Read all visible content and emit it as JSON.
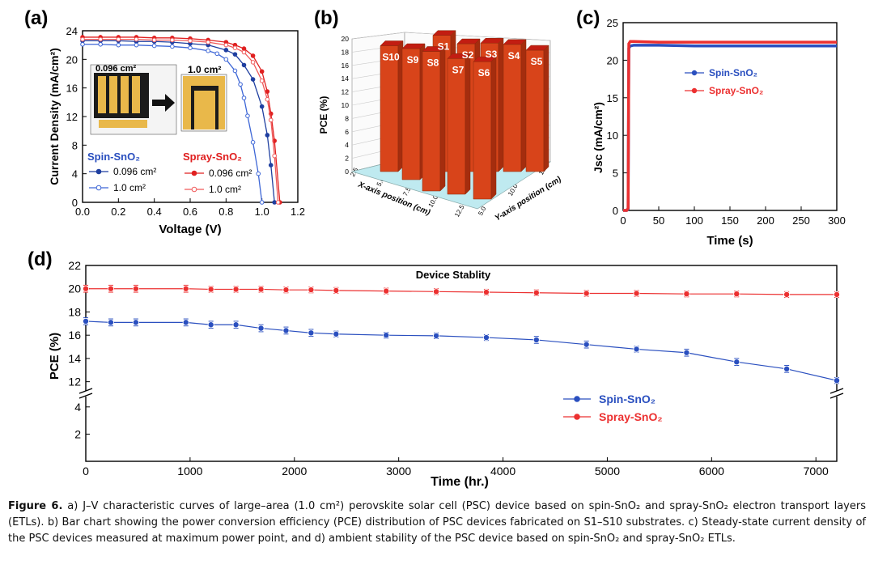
{
  "chart_data": [
    {
      "panel": "(a)",
      "type": "line",
      "title": "",
      "xlabel": "Voltage (V)",
      "ylabel": "Current Density (mA/cm²)",
      "xlim": [
        0.0,
        1.2
      ],
      "ylim": [
        0,
        24
      ],
      "xticks": [
        "0.0",
        "0.2",
        "0.4",
        "0.6",
        "0.8",
        "1.0",
        "1.2"
      ],
      "yticks": [
        "0",
        "4",
        "8",
        "12",
        "16",
        "20",
        "24"
      ],
      "group_labels": [
        "Spin-SnO₂",
        "Spray-SnO₂"
      ],
      "inset_labels": [
        "0.096 cm²",
        "1.0 cm²"
      ],
      "series": [
        {
          "name": "0.096 cm²",
          "group": "Spin-SnO₂",
          "color": "#1f3fa0",
          "marker": "filled",
          "x": [
            0,
            0.1,
            0.2,
            0.3,
            0.4,
            0.5,
            0.6,
            0.7,
            0.8,
            0.85,
            0.9,
            0.95,
            1.0,
            1.03,
            1.05,
            1.07
          ],
          "y": [
            22.6,
            22.6,
            22.6,
            22.5,
            22.5,
            22.4,
            22.2,
            22.0,
            21.3,
            20.7,
            19.2,
            17.2,
            13.4,
            9.4,
            5.2,
            0
          ]
        },
        {
          "name": "1.0 cm²",
          "group": "Spin-SnO₂",
          "color": "#3d66d6",
          "marker": "open",
          "x": [
            0,
            0.1,
            0.2,
            0.3,
            0.4,
            0.5,
            0.6,
            0.7,
            0.75,
            0.8,
            0.85,
            0.88,
            0.9,
            0.92,
            0.95,
            0.98,
            1.0
          ],
          "y": [
            22.1,
            22.1,
            22.0,
            22.0,
            21.9,
            21.8,
            21.6,
            21.2,
            20.8,
            20.0,
            18.4,
            16.5,
            14.6,
            12.1,
            8.4,
            4.0,
            0
          ]
        },
        {
          "name": "0.096 cm²",
          "group": "Spray-SnO₂",
          "color": "#e02020",
          "marker": "filled",
          "x": [
            0,
            0.1,
            0.2,
            0.3,
            0.4,
            0.5,
            0.6,
            0.7,
            0.8,
            0.85,
            0.9,
            0.95,
            1.0,
            1.03,
            1.05,
            1.07,
            1.1
          ],
          "y": [
            23.1,
            23.1,
            23.1,
            23.1,
            23.0,
            23.0,
            22.9,
            22.7,
            22.4,
            22.0,
            21.5,
            20.5,
            18.3,
            15.5,
            12.4,
            8.6,
            0
          ]
        },
        {
          "name": "1.0 cm²",
          "group": "Spray-SnO₂",
          "color": "#f05a5a",
          "marker": "open",
          "x": [
            0,
            0.1,
            0.2,
            0.3,
            0.4,
            0.5,
            0.6,
            0.7,
            0.8,
            0.85,
            0.9,
            0.95,
            1.0,
            1.03,
            1.05,
            1.07,
            1.09
          ],
          "y": [
            22.8,
            22.8,
            22.8,
            22.8,
            22.7,
            22.7,
            22.6,
            22.4,
            22.0,
            21.6,
            21.0,
            19.6,
            17.0,
            14.4,
            11.5,
            6.5,
            0
          ]
        }
      ]
    },
    {
      "panel": "(b)",
      "type": "bar",
      "title": "",
      "xlabel": "X-axis position (cm)",
      "ylabel": "Y-axis position (cm)",
      "zlabel": "PCE (%)",
      "zlim": [
        0,
        20
      ],
      "zticks": [
        "0",
        "2",
        "4",
        "6",
        "8",
        "10",
        "12",
        "14",
        "16",
        "18",
        "20"
      ],
      "xticks": [
        "2.5",
        "5.0",
        "7.5",
        "10.0",
        "12.5"
      ],
      "yticks": [
        "5.0",
        "10.0",
        "15.0"
      ],
      "categories": [
        "S10",
        "S9",
        "S8",
        "S7",
        "S6",
        "S5",
        "S4",
        "S3",
        "S2",
        "S1"
      ],
      "values": [
        19.2,
        19.4,
        19.6,
        19.5,
        19.3,
        19.1,
        19.4,
        19.6,
        19.5,
        19.8
      ],
      "color": "#d8441a"
    },
    {
      "panel": "(c)",
      "type": "line",
      "title": "",
      "xlabel": "Time (s)",
      "ylabel": "Jsc (mA/cm²)",
      "xlim": [
        0,
        300
      ],
      "ylim": [
        0,
        25
      ],
      "xticks": [
        "0",
        "50",
        "100",
        "150",
        "200",
        "250",
        "300"
      ],
      "yticks": [
        "0",
        "5",
        "10",
        "15",
        "20",
        "25"
      ],
      "series": [
        {
          "name": "Spin-SnO₂",
          "color": "#2a4fbf",
          "x": [
            0,
            5,
            7,
            8,
            10,
            15,
            50,
            100,
            150,
            200,
            250,
            300
          ],
          "y": [
            0,
            0,
            0.2,
            21.6,
            21.9,
            22.0,
            22.0,
            21.9,
            21.9,
            21.9,
            21.9,
            21.9
          ]
        },
        {
          "name": "Spray-SnO₂",
          "color": "#ec3030",
          "x": [
            0,
            5,
            7,
            8,
            10,
            15,
            50,
            100,
            150,
            200,
            250,
            300
          ],
          "y": [
            0,
            0,
            0.3,
            22.2,
            22.5,
            22.5,
            22.4,
            22.4,
            22.4,
            22.4,
            22.4,
            22.4
          ]
        }
      ]
    },
    {
      "panel": "(d)",
      "type": "line",
      "title": "Device Stablity",
      "xlabel": "Time (hr.)",
      "ylabel": "PCE (%)",
      "xlim": [
        0,
        7200
      ],
      "ylim_upper": [
        11,
        22
      ],
      "ylim_lower": [
        0,
        5
      ],
      "axis_break": true,
      "xticks": [
        "0",
        "1000",
        "2000",
        "3000",
        "4000",
        "5000",
        "6000",
        "7000"
      ],
      "yticks_upper": [
        "12",
        "14",
        "16",
        "18",
        "20",
        "22"
      ],
      "yticks_lower": [
        "2",
        "4"
      ],
      "series": [
        {
          "name": "Spin-SnO₂",
          "color": "#2a4fbf",
          "x": [
            0,
            240,
            480,
            960,
            1200,
            1440,
            1680,
            1920,
            2160,
            2400,
            2880,
            3360,
            3840,
            4320,
            4800,
            5280,
            5760,
            6240,
            6720,
            7200
          ],
          "y": [
            17.2,
            17.1,
            17.1,
            17.1,
            16.9,
            16.9,
            16.6,
            16.4,
            16.2,
            16.1,
            16.0,
            15.95,
            15.8,
            15.6,
            15.2,
            14.8,
            14.5,
            13.7,
            13.1,
            12.1
          ],
          "err": [
            0.3,
            0.3,
            0.3,
            0.3,
            0.3,
            0.3,
            0.3,
            0.3,
            0.3,
            0.25,
            0.25,
            0.25,
            0.25,
            0.3,
            0.3,
            0.25,
            0.3,
            0.3,
            0.3,
            0.25
          ]
        },
        {
          "name": "Spray-SnO₂",
          "color": "#ec3030",
          "x": [
            0,
            240,
            480,
            960,
            1200,
            1440,
            1680,
            1920,
            2160,
            2400,
            2880,
            3360,
            3840,
            4320,
            4800,
            5280,
            5760,
            6240,
            6720,
            7200
          ],
          "y": [
            20.0,
            20.0,
            20.0,
            20.0,
            19.95,
            19.95,
            19.95,
            19.9,
            19.9,
            19.85,
            19.8,
            19.75,
            19.7,
            19.65,
            19.6,
            19.6,
            19.55,
            19.55,
            19.5,
            19.5
          ],
          "err": [
            0.3,
            0.3,
            0.3,
            0.3,
            0.25,
            0.25,
            0.25,
            0.25,
            0.25,
            0.25,
            0.25,
            0.25,
            0.25,
            0.25,
            0.25,
            0.25,
            0.25,
            0.25,
            0.25,
            0.25
          ]
        }
      ]
    }
  ],
  "caption": {
    "label": "Figure 6.",
    "text": " a) J–V characteristic curves of large–area (1.0 cm²) perovskite solar cell (PSC) device based on spin-SnO₂ and spray-SnO₂ electron transport layers (ETLs). b) Bar chart showing the power conversion efficiency (PCE) distribution of PSC devices fabricated on S1–S10 substrates. c) Steady-state current density of the PSC devices measured at maximum power point, and d) ambient stability of the PSC device based on spin-SnO₂ and spray-SnO₂ ETLs."
  }
}
